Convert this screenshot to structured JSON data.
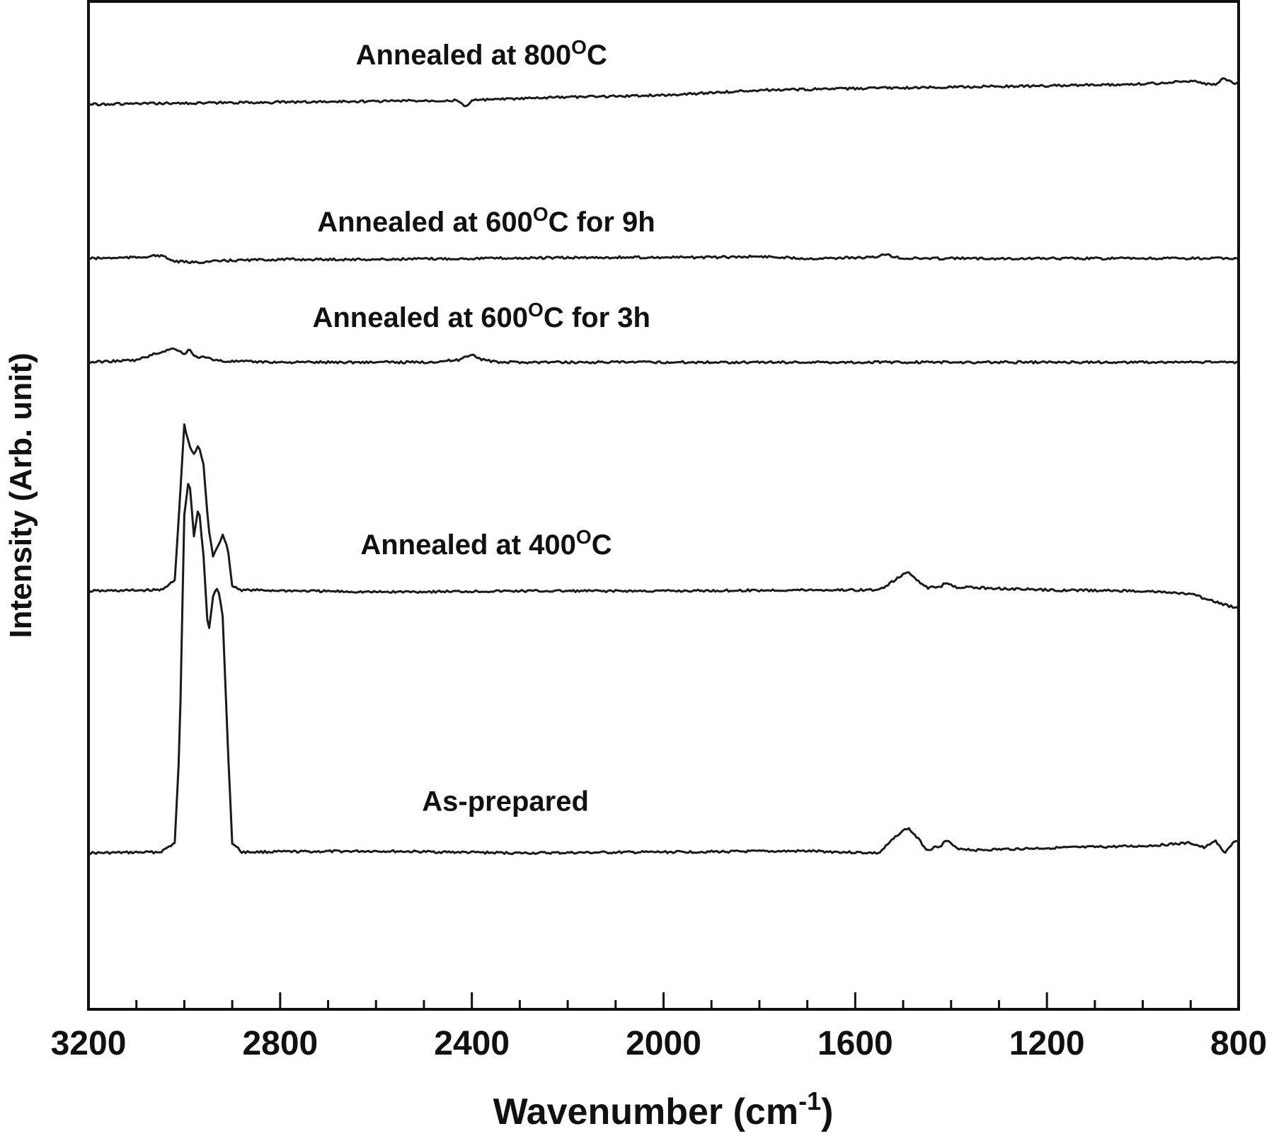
{
  "chart_data": {
    "type": "line",
    "title": "",
    "xlabel_main": "Wavenumber (cm",
    "xlabel_sup": "-1",
    "xlabel_end": ")",
    "ylabel": "Intensity (Arb. unit)",
    "xlim": [
      3200,
      800
    ],
    "x_reversed": true,
    "ylim": [
      0,
      100
    ],
    "y_ticks_shown": false,
    "x_major_ticks": [
      3200,
      2800,
      2400,
      2000,
      1600,
      1200,
      800
    ],
    "x_minor_step": 100,
    "grid": false,
    "legend": "none",
    "line_color": "#1a1a1a",
    "series": [
      {
        "label_main": "As-prepared",
        "label_sup": "",
        "label_end": "",
        "baseline": 15.5,
        "points": [
          [
            3200,
            15.5
          ],
          [
            3050,
            15.6
          ],
          [
            3020,
            16.5
          ],
          [
            3010,
            26
          ],
          [
            3000,
            49
          ],
          [
            2990,
            53
          ],
          [
            2980,
            47
          ],
          [
            2970,
            50
          ],
          [
            2960,
            45
          ],
          [
            2950,
            37
          ],
          [
            2940,
            41
          ],
          [
            2930,
            42
          ],
          [
            2920,
            39
          ],
          [
            2910,
            27
          ],
          [
            2900,
            16.5
          ],
          [
            2880,
            15.6
          ],
          [
            2600,
            15.7
          ],
          [
            2300,
            15.5
          ],
          [
            2000,
            15.6
          ],
          [
            1700,
            15.7
          ],
          [
            1550,
            15.5
          ],
          [
            1510,
            17.4
          ],
          [
            1490,
            18
          ],
          [
            1470,
            17
          ],
          [
            1450,
            15.8
          ],
          [
            1420,
            16.3
          ],
          [
            1410,
            16.8
          ],
          [
            1390,
            16
          ],
          [
            1350,
            15.8
          ],
          [
            1200,
            16
          ],
          [
            1000,
            16.2
          ],
          [
            900,
            16.5
          ],
          [
            870,
            16
          ],
          [
            850,
            16.8
          ],
          [
            830,
            15.5
          ],
          [
            810,
            16.6
          ],
          [
            800,
            16.6
          ]
        ]
      },
      {
        "label_main": "Annealed at 400",
        "label_sup": "O",
        "label_end": "C",
        "baseline": 41.5,
        "points": [
          [
            3200,
            41.5
          ],
          [
            3050,
            41.6
          ],
          [
            3020,
            42.5
          ],
          [
            3010,
            50
          ],
          [
            3000,
            58
          ],
          [
            2990,
            56
          ],
          [
            2980,
            55
          ],
          [
            2970,
            56
          ],
          [
            2960,
            54
          ],
          [
            2950,
            48
          ],
          [
            2940,
            45
          ],
          [
            2920,
            47
          ],
          [
            2910,
            46
          ],
          [
            2900,
            42
          ],
          [
            2880,
            41.6
          ],
          [
            2600,
            41.4
          ],
          [
            2300,
            41.5
          ],
          [
            2000,
            41.5
          ],
          [
            1700,
            41.6
          ],
          [
            1550,
            41.6
          ],
          [
            1510,
            42.8
          ],
          [
            1490,
            43.4
          ],
          [
            1470,
            42.6
          ],
          [
            1450,
            41.8
          ],
          [
            1420,
            42
          ],
          [
            1410,
            42.4
          ],
          [
            1390,
            41.9
          ],
          [
            1200,
            41.6
          ],
          [
            1000,
            41.5
          ],
          [
            900,
            41.2
          ],
          [
            860,
            40.6
          ],
          [
            820,
            40
          ],
          [
            800,
            39.8
          ]
        ]
      },
      {
        "label_main": "Annealed at 600",
        "label_sup": "O",
        "label_end": "C for 3h",
        "baseline": 64.2,
        "points": [
          [
            3200,
            64.2
          ],
          [
            3100,
            64.4
          ],
          [
            3050,
            65.2
          ],
          [
            3020,
            65.6
          ],
          [
            3000,
            65
          ],
          [
            2990,
            65.5
          ],
          [
            2980,
            64.8
          ],
          [
            2950,
            64.6
          ],
          [
            2920,
            64.3
          ],
          [
            2800,
            64.2
          ],
          [
            2500,
            64.2
          ],
          [
            2430,
            64.4
          ],
          [
            2400,
            65
          ],
          [
            2380,
            64.5
          ],
          [
            2350,
            64.2
          ],
          [
            2000,
            64.2
          ],
          [
            1500,
            64.2
          ],
          [
            1000,
            64.2
          ],
          [
            800,
            64.2
          ]
        ]
      },
      {
        "label_main": "Annealed at 600",
        "label_sup": "O",
        "label_end": "C for 9h",
        "baseline": 74.5,
        "points": [
          [
            3200,
            74.5
          ],
          [
            3100,
            74.6
          ],
          [
            3050,
            74.8
          ],
          [
            3020,
            74.2
          ],
          [
            2980,
            74.1
          ],
          [
            2900,
            74.3
          ],
          [
            2800,
            74.4
          ],
          [
            2600,
            74.4
          ],
          [
            2400,
            74.5
          ],
          [
            2100,
            74.6
          ],
          [
            1900,
            74.6
          ],
          [
            1800,
            74.7
          ],
          [
            1700,
            74.5
          ],
          [
            1560,
            74.6
          ],
          [
            1540,
            74.9
          ],
          [
            1520,
            74.7
          ],
          [
            1500,
            74.5
          ],
          [
            1200,
            74.5
          ],
          [
            1000,
            74.5
          ],
          [
            800,
            74.5
          ]
        ]
      },
      {
        "label_main": "Annealed at 800",
        "label_sup": "O",
        "label_end": "C",
        "baseline": 89.8,
        "points": [
          [
            3200,
            89.8
          ],
          [
            3000,
            89.9
          ],
          [
            2600,
            90.1
          ],
          [
            2430,
            90.2
          ],
          [
            2415,
            89.5
          ],
          [
            2400,
            90.2
          ],
          [
            2200,
            90.5
          ],
          [
            2000,
            90.7
          ],
          [
            1800,
            91.2
          ],
          [
            1400,
            91.5
          ],
          [
            1100,
            91.7
          ],
          [
            1000,
            91.8
          ],
          [
            900,
            92.1
          ],
          [
            850,
            91.7
          ],
          [
            830,
            92.4
          ],
          [
            810,
            91.8
          ],
          [
            800,
            92
          ]
        ]
      }
    ]
  }
}
